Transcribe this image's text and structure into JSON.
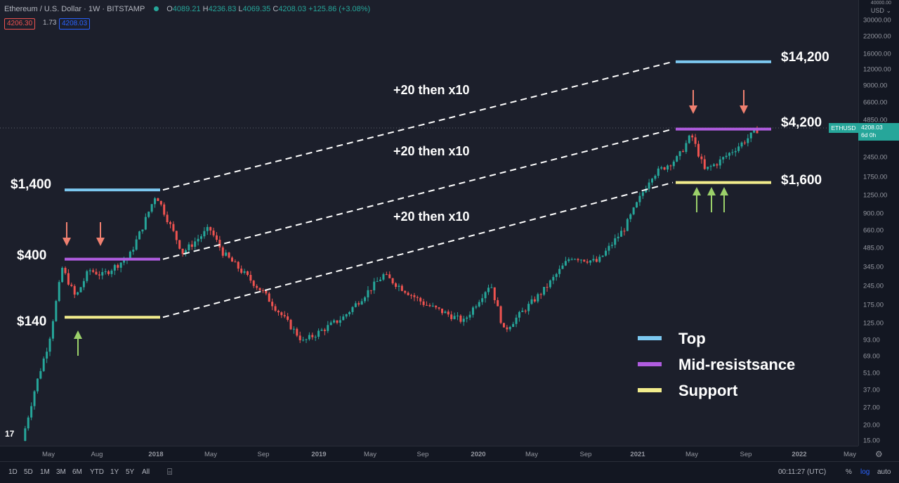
{
  "header": {
    "symbol": "Ethereum / U.S. Dollar",
    "interval": "1W",
    "exchange": "BITSTAMP",
    "open": "4089.21",
    "high": "4236.83",
    "low": "4069.35",
    "close": "4208.03",
    "change": "+125.86 (+3.08%)",
    "bid": "4206.30",
    "spread": "1.73",
    "ask": "4208.03"
  },
  "axis": {
    "currency": "USD",
    "currency_arrow": "⌄",
    "top_label": "40000.00",
    "y_ticks": [
      "30000.00",
      "22000.00",
      "16000.00",
      "12000.00",
      "9000.00",
      "6600.00",
      "4850.00",
      "3450.00",
      "2450.00",
      "1750.00",
      "1250.00",
      "900.00",
      "660.00",
      "485.00",
      "345.00",
      "245.00",
      "175.00",
      "125.00",
      "93.00",
      "69.00",
      "51.00",
      "37.00",
      "27.00",
      "20.00",
      "15.00"
    ],
    "x_ticks": [
      "May",
      "Aug",
      "2018",
      "May",
      "Sep",
      "2019",
      "May",
      "Sep",
      "2020",
      "May",
      "Sep",
      "2021",
      "May",
      "Sep",
      "2022",
      "May"
    ],
    "price_tag_symbol": "ETHUSD",
    "price_tag_value": "4208.03",
    "price_tag_countdown": "6d 0h"
  },
  "annotations": {
    "left_top": "$1,400",
    "left_mid": "$400",
    "left_support": "$140",
    "right_top": "$14,200",
    "right_mid": "$4,200",
    "right_support": "$1,600",
    "channel_upper": "+20 then x10",
    "channel_middle": "+20 then x10",
    "channel_lower": "+20 then x10"
  },
  "legend": [
    {
      "label": "Top",
      "color": "#7cc8f0"
    },
    {
      "label": "Mid-resistsance",
      "color": "#b05ce0"
    },
    {
      "label": "Support",
      "color": "#f2ec8c"
    }
  ],
  "colors": {
    "up": "#26a69a",
    "down": "#ef5350",
    "arrow_down": "#f08070",
    "arrow_up": "#9bd06a",
    "top": "#7cc8f0",
    "mid": "#b05ce0",
    "support": "#f2ec8c"
  },
  "toolbar": {
    "timeframes": [
      "1D",
      "5D",
      "1M",
      "3M",
      "6M",
      "YTD",
      "1Y",
      "5Y",
      "All"
    ],
    "clock": "00:11:27 (UTC)",
    "percent": "%",
    "log": "log",
    "auto": "auto"
  },
  "chart_data": {
    "type": "candlestick",
    "scale": "log",
    "x_unit": "week",
    "ylim": [
      15,
      40000
    ],
    "x_range": [
      "2017-03",
      "2022-06"
    ],
    "closes_approx": [
      {
        "x": "2017-03",
        "y": 15
      },
      {
        "x": "2017-04",
        "y": 40
      },
      {
        "x": "2017-05",
        "y": 90
      },
      {
        "x": "2017-06",
        "y": 340
      },
      {
        "x": "2017-07",
        "y": 200
      },
      {
        "x": "2017-08",
        "y": 330
      },
      {
        "x": "2017-09",
        "y": 300
      },
      {
        "x": "2017-11",
        "y": 420
      },
      {
        "x": "2017-12",
        "y": 720
      },
      {
        "x": "2018-01",
        "y": 1300
      },
      {
        "x": "2018-03",
        "y": 450
      },
      {
        "x": "2018-05",
        "y": 700
      },
      {
        "x": "2018-06",
        "y": 450
      },
      {
        "x": "2018-09",
        "y": 220
      },
      {
        "x": "2018-12",
        "y": 90
      },
      {
        "x": "2019-03",
        "y": 140
      },
      {
        "x": "2019-06",
        "y": 300
      },
      {
        "x": "2019-09",
        "y": 180
      },
      {
        "x": "2019-12",
        "y": 130
      },
      {
        "x": "2020-02",
        "y": 260
      },
      {
        "x": "2020-03",
        "y": 110
      },
      {
        "x": "2020-06",
        "y": 230
      },
      {
        "x": "2020-08",
        "y": 420
      },
      {
        "x": "2020-10",
        "y": 380
      },
      {
        "x": "2020-12",
        "y": 700
      },
      {
        "x": "2021-02",
        "y": 1800
      },
      {
        "x": "2021-04",
        "y": 2500
      },
      {
        "x": "2021-05",
        "y": 3800
      },
      {
        "x": "2021-06",
        "y": 2000
      },
      {
        "x": "2021-07",
        "y": 2300
      },
      {
        "x": "2021-09",
        "y": 3400
      },
      {
        "x": "2021-10",
        "y": 4208
      }
    ],
    "levels": [
      {
        "name": "Top",
        "values": [
          1400,
          14200
        ]
      },
      {
        "name": "Mid-resistsance",
        "values": [
          400,
          4200
        ]
      },
      {
        "name": "Support",
        "values": [
          140,
          1600
        ]
      }
    ]
  }
}
